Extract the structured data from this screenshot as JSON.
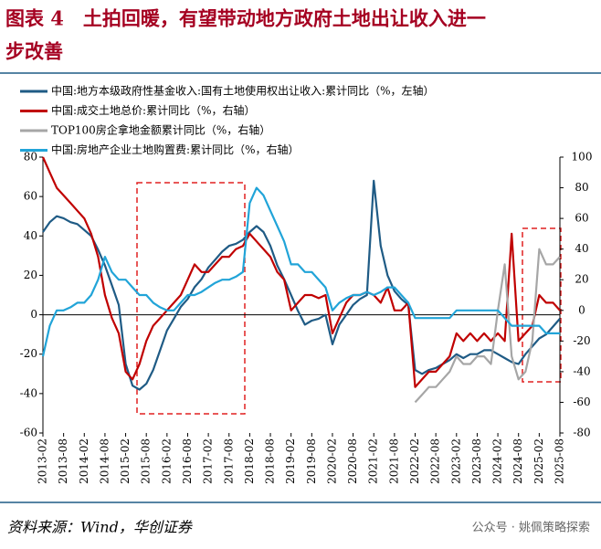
{
  "chart_data": {
    "type": "line",
    "title": "图表 4　土拍回暖，有望带动地方政府土地出让收入进一",
    "title_line2": "步改善",
    "source": "资料来源：Wind，华创证券",
    "watermark": "公众号 · 姚佩策略探索",
    "categories": [
      "2013-02",
      null,
      null,
      "2013-08",
      null,
      null,
      "2014-02",
      null,
      null,
      "2014-08",
      null,
      null,
      "2015-02",
      null,
      null,
      "2015-08",
      null,
      null,
      "2016-02",
      null,
      null,
      "2016-08",
      null,
      null,
      "2017-02",
      null,
      null,
      "2017-08",
      null,
      null,
      "2018-02",
      null,
      null,
      "2018-08",
      null,
      null,
      "2019-02",
      null,
      null,
      "2019-08",
      null,
      null,
      "2020-02",
      null,
      null,
      "2020-08",
      null,
      null,
      "2021-02",
      null,
      null,
      "2021-08",
      null,
      null,
      "2022-02",
      null,
      null,
      "2022-08",
      null,
      null,
      "2023-02",
      null,
      null,
      "2023-08",
      null,
      null,
      "2024-02",
      null,
      null,
      "2024-08",
      null,
      null,
      "2025-02",
      null,
      null,
      "2025-08"
    ],
    "ylim": [
      -60,
      80
    ],
    "yticks": [
      -60,
      -40,
      -20,
      0,
      20,
      40,
      60,
      80
    ],
    "y2lim": [
      -80,
      100
    ],
    "y2ticks": [
      -80,
      -60,
      -40,
      -20,
      0,
      20,
      40,
      60,
      80,
      100
    ],
    "series": [
      {
        "name": "中国:地方本级政府性基金收入:国有土地使用权出让收入:累计同比（%，左轴）",
        "color": "#1f5b85",
        "axis": "y",
        "values": [
          42,
          47,
          50,
          49,
          47,
          46,
          43,
          40,
          33,
          25,
          15,
          5,
          -25,
          -36,
          -38,
          -35,
          -28,
          -18,
          -8,
          -2,
          4,
          8,
          14,
          18,
          24,
          28,
          32,
          35,
          36,
          38,
          42,
          45,
          42,
          35,
          25,
          18,
          10,
          2,
          -5,
          -3,
          -2,
          0,
          -15,
          -5,
          0,
          5,
          8,
          10,
          68,
          35,
          20,
          12,
          8,
          5,
          -28,
          -30,
          -28,
          -27,
          -25,
          -23,
          -20,
          -22,
          -20,
          -20,
          -18,
          -18,
          -20,
          -22,
          -24,
          -25,
          -20,
          -16,
          -12,
          -10,
          -6,
          -2
        ]
      },
      {
        "name": "中国:成交土地总价:累计同比（%，右轴）",
        "color": "#c00000",
        "axis": "y2",
        "values": [
          100,
          90,
          80,
          75,
          70,
          65,
          60,
          50,
          35,
          10,
          -5,
          -15,
          -40,
          -45,
          -35,
          -20,
          -10,
          -5,
          0,
          5,
          10,
          20,
          30,
          25,
          25,
          30,
          35,
          35,
          40,
          42,
          50,
          45,
          40,
          35,
          25,
          20,
          0,
          5,
          10,
          10,
          8,
          10,
          -15,
          -5,
          5,
          10,
          10,
          12,
          10,
          5,
          15,
          0,
          0,
          5,
          -50,
          -45,
          -40,
          -40,
          -35,
          -30,
          -15,
          -20,
          -15,
          -20,
          -15,
          -20,
          -15,
          -20,
          50,
          -20,
          -15,
          -10,
          10,
          5,
          5,
          0
        ]
      },
      {
        "name": "TOP100房企拿地金额累计同比（%，右轴）",
        "color": "#a6a6a6",
        "axis": "y2",
        "values": [
          null,
          null,
          null,
          null,
          null,
          null,
          null,
          null,
          null,
          null,
          null,
          null,
          null,
          null,
          null,
          null,
          null,
          null,
          null,
          null,
          null,
          null,
          null,
          null,
          null,
          null,
          null,
          null,
          null,
          null,
          null,
          null,
          null,
          null,
          null,
          null,
          null,
          null,
          null,
          null,
          null,
          null,
          null,
          null,
          null,
          null,
          null,
          null,
          null,
          null,
          null,
          null,
          null,
          null,
          -60,
          -55,
          -50,
          -50,
          -45,
          -40,
          -30,
          -35,
          -35,
          -30,
          -30,
          -35,
          0,
          30,
          -30,
          -45,
          -40,
          -20,
          40,
          30,
          30,
          35
        ]
      },
      {
        "name": "中国:房地产企业土地购置费:累计同比（%，右轴）",
        "color": "#21a4d8",
        "axis": "y2",
        "values": [
          -30,
          -10,
          0,
          0,
          2,
          5,
          5,
          10,
          20,
          35,
          25,
          20,
          20,
          15,
          10,
          10,
          5,
          2,
          0,
          0,
          5,
          10,
          10,
          12,
          15,
          18,
          20,
          20,
          22,
          25,
          70,
          80,
          75,
          65,
          55,
          45,
          30,
          30,
          25,
          25,
          20,
          15,
          0,
          5,
          8,
          10,
          10,
          12,
          10,
          12,
          15,
          15,
          10,
          5,
          -5,
          -5,
          -5,
          -5,
          -5,
          -5,
          0,
          0,
          0,
          0,
          0,
          0,
          0,
          -5,
          -10,
          -10,
          -10,
          -10,
          -10,
          -15,
          -15,
          -15
        ]
      }
    ]
  }
}
